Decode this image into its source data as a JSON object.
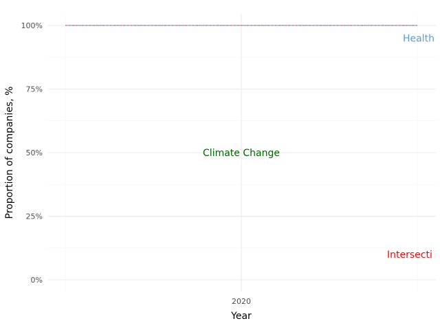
{
  "chart_data": {
    "type": "line",
    "title": "",
    "xlabel": "Year",
    "ylabel": "Proportion of companies, %",
    "x_ticks": [
      "2020"
    ],
    "y_ticks": [
      "0%",
      "25%",
      "50%",
      "75%",
      "100%"
    ],
    "ylim": [
      0,
      100
    ],
    "grid": true,
    "legend": "none",
    "series": [
      {
        "color": "#5a9bd5",
        "values": [
          100,
          100,
          100
        ]
      },
      {
        "color": "#e03030",
        "values": [
          100,
          100,
          100
        ]
      },
      {
        "color": "#228b22",
        "values": [
          100,
          100,
          100
        ]
      }
    ],
    "annotations": [
      {
        "text": "Health",
        "y": 95,
        "color": "#5a9bd5"
      },
      {
        "text": "Climate Change",
        "y": 50,
        "color": "#006400"
      },
      {
        "text": "Intersecti",
        "y": 10,
        "color": "#ff0000"
      }
    ]
  }
}
